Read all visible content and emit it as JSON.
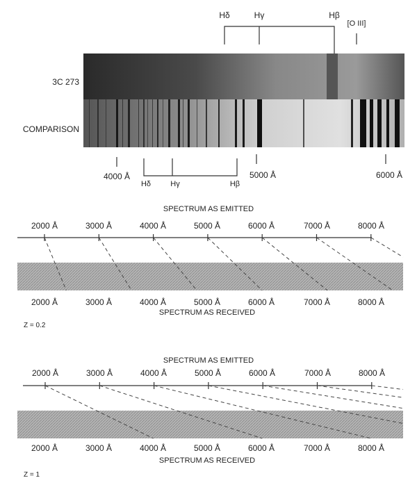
{
  "spectrum": {
    "object_label": "3C 273",
    "comparison_label": "COMPARISON",
    "top_lines": [
      "Hδ",
      "Hγ",
      "Hβ",
      "[O III]"
    ],
    "scale_ticks": [
      "4000 Å",
      "5000 Å",
      "6000 Å"
    ],
    "bottom_lines": [
      "Hδ",
      "Hγ",
      "Hβ"
    ]
  },
  "panels": [
    {
      "emitted_title": "SPECTRUM AS EMITTED",
      "received_title": "SPECTRUM AS RECEIVED",
      "z_label": "Z = 0.2",
      "redshift": 0.2,
      "emitted_ticks": [
        "2000 Å",
        "3000 Å",
        "4000 Å",
        "5000 Å",
        "6000 Å",
        "7000 Å",
        "8000 Å"
      ],
      "received_ticks": [
        "2000 Å",
        "3000 Å",
        "4000 Å",
        "5000 Å",
        "6000 Å",
        "7000 Å",
        "8000 Å"
      ]
    },
    {
      "emitted_title": "SPECTRUM AS EMITTED",
      "received_title": "SPECTRUM AS RECEIVED",
      "z_label": "Z = 1",
      "redshift": 1,
      "emitted_ticks": [
        "2000 Å",
        "3000 Å",
        "4000 Å",
        "5000 Å",
        "6000 Å",
        "7000 Å",
        "8000 Å"
      ],
      "received_ticks": [
        "2000 Å",
        "3000 Å",
        "4000 Å",
        "5000 Å",
        "6000 Å",
        "7000 Å",
        "8000 Å"
      ]
    }
  ]
}
